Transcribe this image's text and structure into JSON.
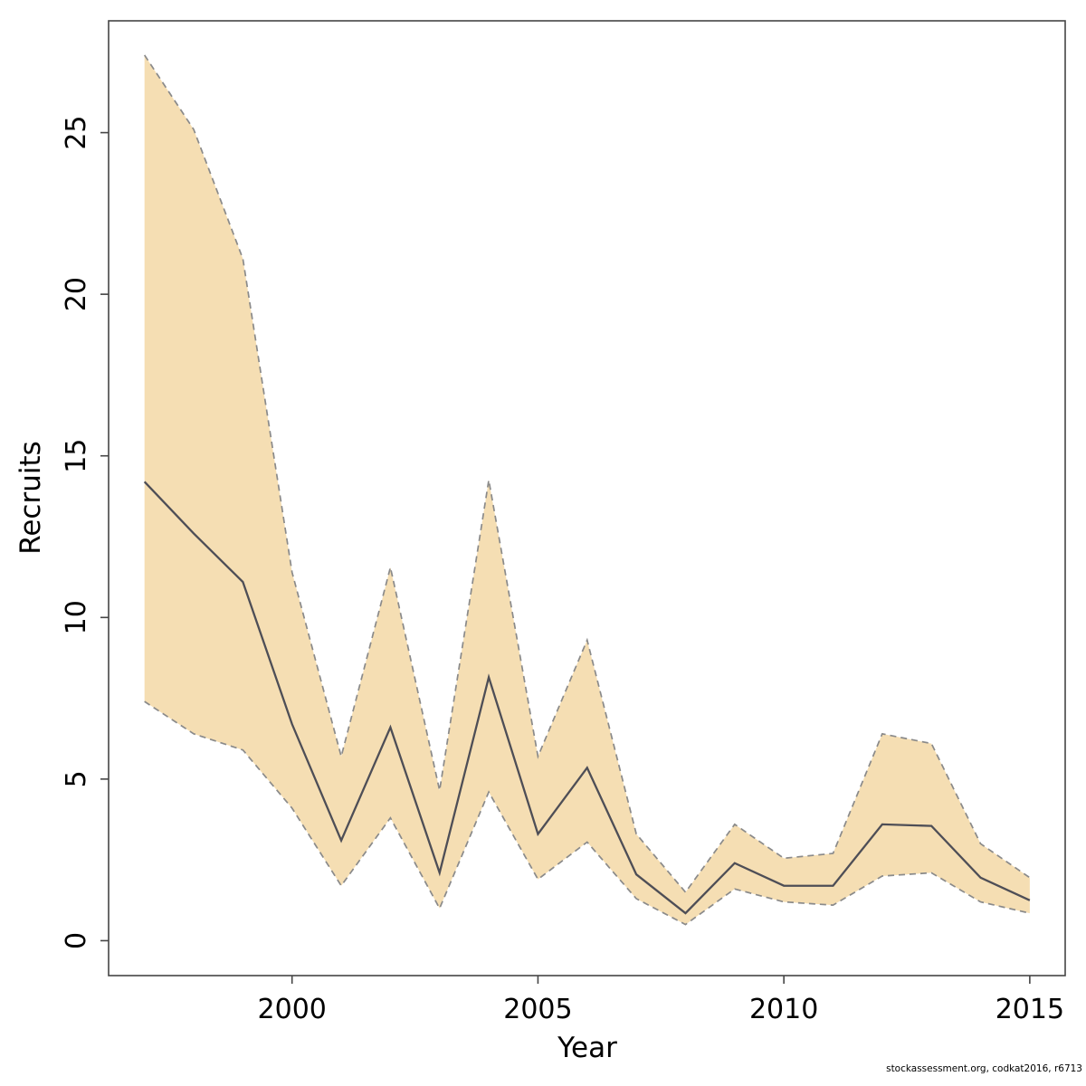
{
  "figure": {
    "background": "#ffffff",
    "caption": "stockassessment.org, codkat2016, r6713"
  },
  "chart_data": {
    "type": "line",
    "title": "",
    "xlabel": "Year",
    "ylabel": "Recruits",
    "x": [
      1997,
      1998,
      1999,
      2000,
      2001,
      2002,
      2003,
      2004,
      2005,
      2006,
      2007,
      2008,
      2009,
      2010,
      2011,
      2012,
      2013,
      2014,
      2015
    ],
    "series": [
      {
        "name": "recruitment-estimate",
        "line_style": "solid",
        "color": "#4e4e56",
        "values": [
          14.2,
          12.6,
          11.1,
          6.7,
          3.1,
          6.6,
          2.1,
          8.15,
          3.3,
          5.35,
          2.05,
          0.85,
          2.4,
          1.7,
          1.7,
          3.6,
          3.55,
          1.95,
          1.25
        ]
      },
      {
        "name": "ci-lower",
        "line_style": "dashed",
        "color": "#8a8a8a",
        "values": [
          7.4,
          6.4,
          5.9,
          4.1,
          1.7,
          3.8,
          1.0,
          4.6,
          1.9,
          3.05,
          1.3,
          0.5,
          1.6,
          1.2,
          1.1,
          2.0,
          2.1,
          1.2,
          0.85
        ]
      },
      {
        "name": "ci-upper",
        "line_style": "dashed",
        "color": "#8a8a8a",
        "values": [
          27.4,
          25.1,
          21.1,
          11.4,
          5.7,
          11.55,
          4.65,
          14.25,
          5.7,
          9.3,
          3.3,
          1.5,
          3.6,
          2.55,
          2.7,
          6.4,
          6.1,
          3.0,
          1.95
        ]
      }
    ],
    "band": {
      "between": [
        "ci-lower",
        "ci-upper"
      ],
      "fill": "#f5deb3"
    },
    "x_ticks": [
      2000,
      2005,
      2010,
      2015
    ],
    "y_ticks": [
      0,
      5,
      10,
      15,
      20,
      25
    ],
    "xlim": [
      1996.27,
      2015.72
    ],
    "ylim": [
      -1.08,
      28.46
    ],
    "grid": false,
    "legend": "none",
    "axis_color": "#454545",
    "text_color": "#000000"
  }
}
